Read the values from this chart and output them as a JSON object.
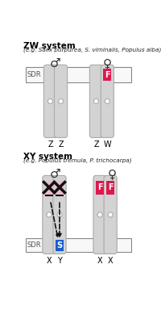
{
  "title_zw": "ZW system",
  "subtitle_zw": "(e.g. Salix purpurea, S. viminalis, Populus alba)",
  "title_xy": "XY system",
  "subtitle_xy": "(e.g. Populus tremula, P. trichocarpa)",
  "bg_color": "#ffffff",
  "chr_color": "#d3d3d3",
  "chr_stroke": "#aaaaaa",
  "F_color": "#e0174e",
  "S_color": "#1a5ccc",
  "pink_color": "#f5b8c8",
  "sdr_stroke": "#888888",
  "text_color": "#000000",
  "subtitle_color": "#222222",
  "cross_color": "#111111",
  "cross_pink": "#e8185a"
}
